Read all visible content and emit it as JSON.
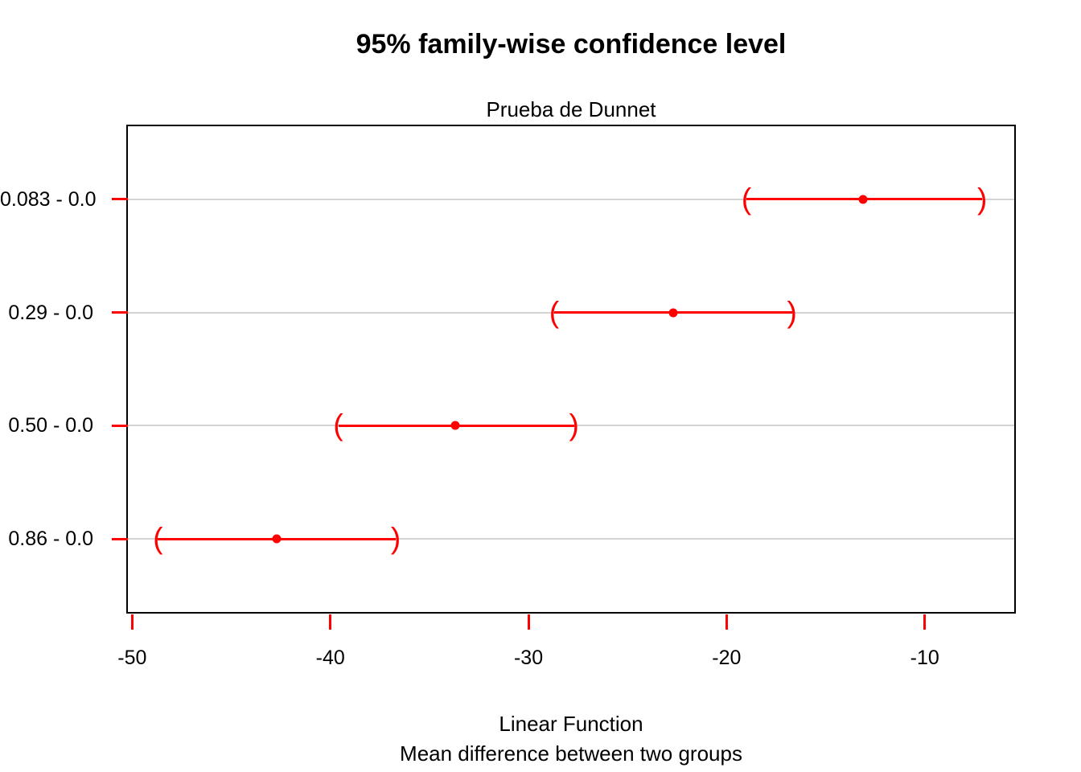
{
  "page": {
    "background": "#ffffff"
  },
  "chart_data": {
    "type": "ci-plot",
    "title": "95% family-wise confidence level",
    "subtitle": "Prueba de Dunnet",
    "xlabel": "Linear Function",
    "xlabel2": "Mean difference between two groups",
    "x_ticks": [
      -50,
      -40,
      -30,
      -20,
      -10
    ],
    "xlim": [
      -50.3,
      -5.4
    ],
    "ylim": [
      0.34,
      4.66
    ],
    "grid": true,
    "categories": [
      "0.083 - 0.0",
      "0.29 - 0.0",
      "0.50 - 0.0",
      "0.86 - 0.0"
    ],
    "y_positions": [
      4,
      3,
      2,
      1
    ],
    "intervals": [
      {
        "label": "0.083 - 0.0",
        "lower": -19.0,
        "estimate": -13.1,
        "upper": -7.1
      },
      {
        "label": "0.29 - 0.0",
        "lower": -28.7,
        "estimate": -22.7,
        "upper": -16.7
      },
      {
        "label": "0.50 - 0.0",
        "lower": -39.6,
        "estimate": -33.7,
        "upper": -27.7
      },
      {
        "label": "0.86 - 0.0",
        "lower": -48.7,
        "estimate": -42.7,
        "upper": -36.7
      }
    ],
    "endpoint_glyphs": {
      "lower": "(",
      "upper": ")"
    },
    "colors": {
      "interval": "#ff0000",
      "tick": "#ff0000",
      "gridline": "#d3d3d3",
      "axis": "#000000",
      "text": "#000000"
    },
    "legend": null
  }
}
